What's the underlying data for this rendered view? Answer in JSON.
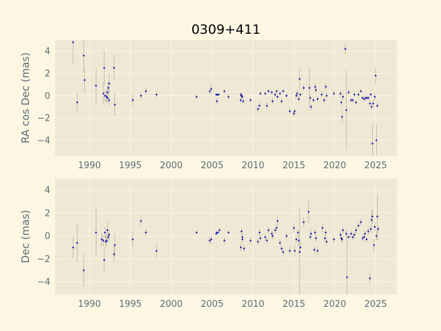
{
  "chart_data": {
    "title": "0309+411",
    "type": "scatter",
    "x_ticks": [
      1990,
      1995,
      2000,
      2005,
      2010,
      2015,
      2020,
      2025
    ],
    "xlim": [
      1985.8,
      2027.6
    ],
    "colors": {
      "background": "#fdf6e3",
      "axes_face": "#efe8d5",
      "grid": "#fbf5e4",
      "points": "#1b1bb0",
      "error_bars": "#b9b3a5",
      "tick_text": "#5a6e76"
    },
    "panels": [
      {
        "ylabel": "RA cos Dec (mas)",
        "ylim": [
          -5.4,
          5.0
        ],
        "y_ticks": [
          -4,
          -2,
          0,
          2,
          4
        ],
        "points": [
          {
            "x": 1988.0,
            "y": 4.8,
            "err": 2.0
          },
          {
            "x": 1988.5,
            "y": -0.6,
            "err": 0.8
          },
          {
            "x": 1989.3,
            "y": 3.6,
            "err": 1.5
          },
          {
            "x": 1989.4,
            "y": 1.4,
            "err": 1.1
          },
          {
            "x": 1990.8,
            "y": 0.9,
            "err": 1.6
          },
          {
            "x": 1991.7,
            "y": 0.2,
            "err": 1.0
          },
          {
            "x": 1991.8,
            "y": 2.5,
            "err": 1.5
          },
          {
            "x": 1991.9,
            "y": 0.0,
            "err": 0.5
          },
          {
            "x": 1992.1,
            "y": -0.1,
            "err": 0.6
          },
          {
            "x": 1992.2,
            "y": 0.3,
            "err": 0.5
          },
          {
            "x": 1992.3,
            "y": 0.7,
            "err": 0.5
          },
          {
            "x": 1992.4,
            "y": 1.1,
            "err": 0.9
          },
          {
            "x": 1992.2,
            "y": -0.2,
            "err": 0.4
          },
          {
            "x": 1992.4,
            "y": -0.4,
            "err": 0.5
          },
          {
            "x": 1993.0,
            "y": 2.5,
            "err": 1.2
          },
          {
            "x": 1993.1,
            "y": -0.8,
            "err": 1.0
          },
          {
            "x": 1995.3,
            "y": -0.4,
            "err": 0.5
          },
          {
            "x": 1996.3,
            "y": 0.0,
            "err": 0.3
          },
          {
            "x": 1996.9,
            "y": 0.4,
            "err": 0.3
          },
          {
            "x": 1998.2,
            "y": 0.1,
            "err": 0.3
          },
          {
            "x": 2003.1,
            "y": -0.1,
            "err": 0.2
          },
          {
            "x": 2004.7,
            "y": 0.4,
            "err": 0.3
          },
          {
            "x": 2004.9,
            "y": 0.6,
            "err": 0.5
          },
          {
            "x": 2005.5,
            "y": 0.1,
            "err": 0.1
          },
          {
            "x": 2005.6,
            "y": 0.1,
            "err": 0.1
          },
          {
            "x": 2005.7,
            "y": 0.1,
            "err": 0.1
          },
          {
            "x": 2005.8,
            "y": 0.1,
            "err": 0.1
          },
          {
            "x": 2005.6,
            "y": -0.5,
            "err": 0.3
          },
          {
            "x": 2006.5,
            "y": 0.4,
            "err": 0.2
          },
          {
            "x": 2007.0,
            "y": -0.1,
            "err": 0.2
          },
          {
            "x": 2008.5,
            "y": 0.1,
            "err": 0.2
          },
          {
            "x": 2008.5,
            "y": -0.4,
            "err": 0.3
          },
          {
            "x": 2008.6,
            "y": 0.0,
            "err": 0.3
          },
          {
            "x": 2008.7,
            "y": -0.1,
            "err": 0.2
          },
          {
            "x": 2008.8,
            "y": -0.5,
            "err": 0.2
          },
          {
            "x": 2009.7,
            "y": -0.4,
            "err": 0.2
          },
          {
            "x": 2010.6,
            "y": -1.2,
            "err": 0.3
          },
          {
            "x": 2010.8,
            "y": -0.9,
            "err": 0.3
          },
          {
            "x": 2010.9,
            "y": 0.2,
            "err": 0.2
          },
          {
            "x": 2011.5,
            "y": 0.2,
            "err": 0.2
          },
          {
            "x": 2011.7,
            "y": -0.9,
            "err": 0.3
          },
          {
            "x": 2011.9,
            "y": 0.4,
            "err": 0.2
          },
          {
            "x": 2012.3,
            "y": 0.3,
            "err": 0.2
          },
          {
            "x": 2012.4,
            "y": -0.5,
            "err": 0.3
          },
          {
            "x": 2012.7,
            "y": 0.1,
            "err": 0.2
          },
          {
            "x": 2012.9,
            "y": 0.4,
            "err": 0.2
          },
          {
            "x": 2013.0,
            "y": -0.1,
            "err": 0.2
          },
          {
            "x": 2013.3,
            "y": 0.2,
            "err": 0.2
          },
          {
            "x": 2013.5,
            "y": -0.5,
            "err": 0.3
          },
          {
            "x": 2013.7,
            "y": 0.4,
            "err": 0.2
          },
          {
            "x": 2014.1,
            "y": 0.0,
            "err": 0.2
          },
          {
            "x": 2014.5,
            "y": -1.4,
            "err": 0.3
          },
          {
            "x": 2015.0,
            "y": -1.6,
            "err": 0.3
          },
          {
            "x": 2015.1,
            "y": -1.4,
            "err": 0.3
          },
          {
            "x": 2015.3,
            "y": 0.0,
            "err": 0.3
          },
          {
            "x": 2015.4,
            "y": 0.2,
            "err": 0.3
          },
          {
            "x": 2015.6,
            "y": -0.3,
            "err": 0.3
          },
          {
            "x": 2015.7,
            "y": 1.5,
            "err": 1.0
          },
          {
            "x": 2015.8,
            "y": 0.1,
            "err": 0.2
          },
          {
            "x": 2016.2,
            "y": 0.7,
            "err": 0.3
          },
          {
            "x": 2016.9,
            "y": 0.7,
            "err": 1.8
          },
          {
            "x": 2017.0,
            "y": -0.2,
            "err": 0.3
          },
          {
            "x": 2017.1,
            "y": -1.0,
            "err": 0.3
          },
          {
            "x": 2017.4,
            "y": -0.4,
            "err": 0.3
          },
          {
            "x": 2017.6,
            "y": 0.8,
            "err": 0.3
          },
          {
            "x": 2017.7,
            "y": 0.5,
            "err": 0.3
          },
          {
            "x": 2017.9,
            "y": -0.3,
            "err": 0.3
          },
          {
            "x": 2018.4,
            "y": 0.1,
            "err": 0.3
          },
          {
            "x": 2018.7,
            "y": -0.4,
            "err": 0.3
          },
          {
            "x": 2018.9,
            "y": 0.8,
            "err": 0.3
          },
          {
            "x": 2019.0,
            "y": 0.0,
            "err": 0.3
          },
          {
            "x": 2019.9,
            "y": 0.2,
            "err": 0.3
          },
          {
            "x": 2020.7,
            "y": 0.2,
            "err": 0.3
          },
          {
            "x": 2020.8,
            "y": -0.6,
            "err": 0.3
          },
          {
            "x": 2020.9,
            "y": -1.9,
            "err": 0.5
          },
          {
            "x": 2021.0,
            "y": -0.1,
            "err": 0.3
          },
          {
            "x": 2021.3,
            "y": 4.2,
            "err": 0.5
          },
          {
            "x": 2021.4,
            "y": -1.3,
            "err": 3.6
          },
          {
            "x": 2021.7,
            "y": 0.3,
            "err": 0.3
          },
          {
            "x": 2022.0,
            "y": -0.4,
            "err": 0.2
          },
          {
            "x": 2022.2,
            "y": -0.4,
            "err": 0.2
          },
          {
            "x": 2022.4,
            "y": 0.1,
            "err": 0.2
          },
          {
            "x": 2022.6,
            "y": -0.6,
            "err": 0.2
          },
          {
            "x": 2022.9,
            "y": 0.1,
            "err": 0.2
          },
          {
            "x": 2023.2,
            "y": 0.4,
            "err": 0.2
          },
          {
            "x": 2023.4,
            "y": -0.2,
            "err": 0.2
          },
          {
            "x": 2023.6,
            "y": -0.3,
            "err": 0.2
          },
          {
            "x": 2023.8,
            "y": -0.2,
            "err": 0.2
          },
          {
            "x": 2023.9,
            "y": -0.2,
            "err": 0.2
          },
          {
            "x": 2024.1,
            "y": -0.2,
            "err": 0.2
          },
          {
            "x": 2024.3,
            "y": -0.7,
            "err": 0.3
          },
          {
            "x": 2024.4,
            "y": 0.1,
            "err": 0.2
          },
          {
            "x": 2024.5,
            "y": -1.0,
            "err": 0.3
          },
          {
            "x": 2024.6,
            "y": -4.3,
            "err": 1.8
          },
          {
            "x": 2024.7,
            "y": -0.7,
            "err": 0.3
          },
          {
            "x": 2024.9,
            "y": -0.1,
            "err": 0.3
          },
          {
            "x": 2025.0,
            "y": 1.8,
            "err": 0.8
          },
          {
            "x": 2025.1,
            "y": -4.0,
            "err": 1.5
          },
          {
            "x": 2025.2,
            "y": -0.9,
            "err": 0.3
          }
        ]
      },
      {
        "ylabel": "Dec (mas)",
        "ylim": [
          -5.1,
          5.0
        ],
        "y_ticks": [
          -4,
          -2,
          0,
          2,
          4
        ],
        "points": [
          {
            "x": 1988.0,
            "y": -1.0,
            "err": 1.0
          },
          {
            "x": 1988.5,
            "y": -0.6,
            "err": 1.7
          },
          {
            "x": 1989.3,
            "y": -3.0,
            "err": 1.4
          },
          {
            "x": 1990.8,
            "y": 0.3,
            "err": 2.0
          },
          {
            "x": 1991.5,
            "y": -0.3,
            "err": 0.6
          },
          {
            "x": 1991.7,
            "y": -0.4,
            "err": 0.5
          },
          {
            "x": 1991.8,
            "y": -2.1,
            "err": 1.0
          },
          {
            "x": 1991.9,
            "y": 0.3,
            "err": 0.5
          },
          {
            "x": 1992.0,
            "y": -0.5,
            "err": 0.6
          },
          {
            "x": 1992.1,
            "y": -0.4,
            "err": 0.5
          },
          {
            "x": 1992.2,
            "y": 0.5,
            "err": 0.8
          },
          {
            "x": 1992.3,
            "y": -0.1,
            "err": 0.5
          },
          {
            "x": 1992.4,
            "y": 0.1,
            "err": 0.5
          },
          {
            "x": 1993.0,
            "y": -1.6,
            "err": 0.7
          },
          {
            "x": 1993.1,
            "y": -0.8,
            "err": 1.0
          },
          {
            "x": 1995.3,
            "y": -0.3,
            "err": 0.7
          },
          {
            "x": 1996.3,
            "y": 1.3,
            "err": 0.4
          },
          {
            "x": 1996.9,
            "y": 0.3,
            "err": 0.3
          },
          {
            "x": 1998.2,
            "y": -1.3,
            "err": 0.6
          },
          {
            "x": 2003.1,
            "y": 0.3,
            "err": 0.2
          },
          {
            "x": 2004.7,
            "y": -0.4,
            "err": 0.3
          },
          {
            "x": 2004.9,
            "y": -0.3,
            "err": 0.4
          },
          {
            "x": 2005.5,
            "y": 0.2,
            "err": 0.1
          },
          {
            "x": 2005.6,
            "y": 0.3,
            "err": 0.1
          },
          {
            "x": 2005.7,
            "y": 0.3,
            "err": 0.1
          },
          {
            "x": 2005.9,
            "y": 0.5,
            "err": 0.2
          },
          {
            "x": 2006.5,
            "y": -0.4,
            "err": 0.3
          },
          {
            "x": 2007.0,
            "y": 0.3,
            "err": 0.2
          },
          {
            "x": 2008.5,
            "y": -1.0,
            "err": 0.3
          },
          {
            "x": 2008.6,
            "y": 0.4,
            "err": 0.3
          },
          {
            "x": 2008.7,
            "y": -0.1,
            "err": 0.3
          },
          {
            "x": 2008.7,
            "y": -0.3,
            "err": 0.3
          },
          {
            "x": 2008.9,
            "y": -1.1,
            "err": 0.3
          },
          {
            "x": 2009.7,
            "y": -0.4,
            "err": 0.3
          },
          {
            "x": 2010.6,
            "y": -0.5,
            "err": 0.3
          },
          {
            "x": 2010.8,
            "y": 0.3,
            "err": 0.3
          },
          {
            "x": 2010.9,
            "y": -0.2,
            "err": 0.3
          },
          {
            "x": 2011.5,
            "y": -0.1,
            "err": 0.3
          },
          {
            "x": 2011.7,
            "y": -0.4,
            "err": 0.3
          },
          {
            "x": 2011.9,
            "y": 0.5,
            "err": 0.3
          },
          {
            "x": 2012.3,
            "y": 0.2,
            "err": 0.3
          },
          {
            "x": 2012.4,
            "y": 0.0,
            "err": 0.3
          },
          {
            "x": 2012.7,
            "y": 0.5,
            "err": 0.3
          },
          {
            "x": 2012.9,
            "y": 0.7,
            "err": 0.3
          },
          {
            "x": 2013.0,
            "y": 1.3,
            "err": 0.4
          },
          {
            "x": 2013.3,
            "y": -0.6,
            "err": 0.3
          },
          {
            "x": 2013.5,
            "y": -1.1,
            "err": 0.3
          },
          {
            "x": 2013.7,
            "y": -1.4,
            "err": 0.3
          },
          {
            "x": 2014.1,
            "y": 0.0,
            "err": 0.3
          },
          {
            "x": 2014.5,
            "y": -1.3,
            "err": 0.3
          },
          {
            "x": 2015.0,
            "y": 0.7,
            "err": 0.4
          },
          {
            "x": 2015.1,
            "y": -1.3,
            "err": 0.5
          },
          {
            "x": 2015.3,
            "y": -0.3,
            "err": 0.3
          },
          {
            "x": 2015.5,
            "y": 0.3,
            "err": 0.3
          },
          {
            "x": 2015.6,
            "y": -0.4,
            "err": 0.5
          },
          {
            "x": 2015.7,
            "y": -1.4,
            "err": 3.9
          },
          {
            "x": 2015.8,
            "y": -1.0,
            "err": 0.5
          },
          {
            "x": 2016.2,
            "y": 1.2,
            "err": 0.4
          },
          {
            "x": 2016.8,
            "y": 2.1,
            "err": 1.0
          },
          {
            "x": 2017.0,
            "y": -0.1,
            "err": 0.3
          },
          {
            "x": 2017.1,
            "y": 0.2,
            "err": 0.3
          },
          {
            "x": 2017.5,
            "y": -1.2,
            "err": 0.3
          },
          {
            "x": 2017.6,
            "y": 0.3,
            "err": 0.3
          },
          {
            "x": 2017.7,
            "y": -0.2,
            "err": 0.3
          },
          {
            "x": 2017.9,
            "y": -1.3,
            "err": 0.3
          },
          {
            "x": 2018.5,
            "y": 0.7,
            "err": 0.4
          },
          {
            "x": 2018.8,
            "y": -0.2,
            "err": 0.3
          },
          {
            "x": 2018.9,
            "y": 0.3,
            "err": 0.3
          },
          {
            "x": 2019.0,
            "y": -0.5,
            "err": 0.3
          },
          {
            "x": 2019.9,
            "y": -0.3,
            "err": 0.3
          },
          {
            "x": 2020.7,
            "y": 0.1,
            "err": 0.3
          },
          {
            "x": 2020.8,
            "y": -0.2,
            "err": 0.3
          },
          {
            "x": 2020.9,
            "y": -0.3,
            "err": 0.3
          },
          {
            "x": 2021.0,
            "y": 0.5,
            "err": 0.3
          },
          {
            "x": 2021.4,
            "y": 0.2,
            "err": 0.3
          },
          {
            "x": 2021.5,
            "y": -3.6,
            "err": 3.8
          },
          {
            "x": 2021.7,
            "y": -0.1,
            "err": 0.3
          },
          {
            "x": 2022.0,
            "y": 0.2,
            "err": 0.3
          },
          {
            "x": 2022.2,
            "y": -0.1,
            "err": 0.3
          },
          {
            "x": 2022.4,
            "y": 0.1,
            "err": 0.3
          },
          {
            "x": 2022.6,
            "y": 0.5,
            "err": 0.3
          },
          {
            "x": 2022.9,
            "y": 0.9,
            "err": 0.3
          },
          {
            "x": 2023.2,
            "y": 1.2,
            "err": 0.3
          },
          {
            "x": 2023.4,
            "y": -0.2,
            "err": 0.3
          },
          {
            "x": 2023.6,
            "y": -0.1,
            "err": 0.3
          },
          {
            "x": 2023.7,
            "y": 0.2,
            "err": 0.3
          },
          {
            "x": 2023.9,
            "y": -0.3,
            "err": 0.3
          },
          {
            "x": 2024.1,
            "y": 0.4,
            "err": 0.3
          },
          {
            "x": 2024.3,
            "y": -3.7,
            "err": 0.5
          },
          {
            "x": 2024.4,
            "y": 0.6,
            "err": 0.3
          },
          {
            "x": 2024.5,
            "y": 1.4,
            "err": 0.8
          },
          {
            "x": 2024.6,
            "y": 1.7,
            "err": 0.6
          },
          {
            "x": 2024.8,
            "y": -0.8,
            "err": 0.5
          },
          {
            "x": 2024.9,
            "y": 0.8,
            "err": 0.4
          },
          {
            "x": 2025.1,
            "y": 0.0,
            "err": 0.4
          },
          {
            "x": 2025.2,
            "y": 1.7,
            "err": 2.0
          },
          {
            "x": 2025.3,
            "y": 0.6,
            "err": 0.3
          }
        ]
      }
    ]
  }
}
